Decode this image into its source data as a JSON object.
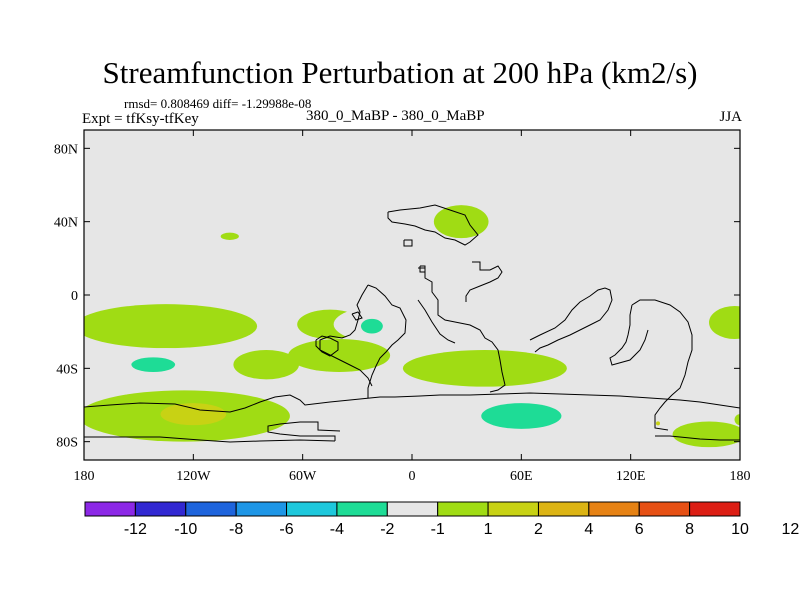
{
  "chart_data": {
    "type": "heatmap",
    "title": "Streamfunction Perturbation at 200 hPa (km2/s)",
    "subtitle_stats": "rmsd= 0.808469  diff= -1.29988e-08",
    "left_label": "Expt = tfKsy-tfKey",
    "center_label": "380_0_MaBP - 380_0_MaBP",
    "right_label": "JJA",
    "x_axis": {
      "min": -180,
      "max": 180,
      "ticks": [
        "180",
        "120W",
        "60W",
        "0",
        "60E",
        "120E",
        "180"
      ]
    },
    "y_axis": {
      "min": -90,
      "max": 90,
      "ticks": [
        "80N",
        "40N",
        "0",
        "40S",
        "80S"
      ]
    },
    "colorbar": {
      "colors": [
        "#8c28e6",
        "#3228d2",
        "#1e64dc",
        "#1e96e6",
        "#1ec8dc",
        "#1edc96",
        "#e6e6e6",
        "#a0dc14",
        "#c8d214",
        "#dcb414",
        "#e68214",
        "#e65014",
        "#dc1e14"
      ],
      "labels": [
        "-12",
        "-10",
        "-8",
        "-6",
        "-4",
        "-2",
        "-1",
        "1",
        "2",
        "4",
        "6",
        "8",
        "10",
        "12"
      ]
    },
    "regions": [
      {
        "lon": -143,
        "lat": 48,
        "rlon": 13,
        "rlat": 5,
        "level": "-1"
      },
      {
        "lon": -100,
        "lat": 32,
        "rlon": 5,
        "rlat": 2,
        "level": "1"
      },
      {
        "lon": 27,
        "lat": 40,
        "rlon": 15,
        "rlat": 9,
        "level": "1"
      },
      {
        "lon": 133,
        "lat": 70,
        "rlon": 7,
        "rlat": 2,
        "level": "-1"
      },
      {
        "lon": 147,
        "lat": 35,
        "rlon": 20,
        "rlat": 8,
        "level": "-1"
      },
      {
        "lon": 115,
        "lat": -15,
        "rlon": 10,
        "rlat": 5,
        "level": "-1"
      },
      {
        "lon": 177,
        "lat": -15,
        "rlon": 14,
        "rlat": 9,
        "level": "1"
      },
      {
        "lon": -135,
        "lat": -17,
        "rlon": 50,
        "rlat": 12,
        "level": "1"
      },
      {
        "lon": -45,
        "lat": -16,
        "rlon": 18,
        "rlat": 8,
        "level": "1"
      },
      {
        "lon": -10,
        "lat": -16,
        "rlon": 33,
        "rlat": 11,
        "level": "-1"
      },
      {
        "lon": -22,
        "lat": -17,
        "rlon": 6,
        "rlat": 4,
        "level": "-2"
      },
      {
        "lon": -40,
        "lat": -33,
        "rlon": 28,
        "rlat": 9,
        "level": "1"
      },
      {
        "lon": -135,
        "lat": -40,
        "rlon": 52,
        "rlat": 11,
        "level": "-1"
      },
      {
        "lon": -142,
        "lat": -38,
        "rlon": 12,
        "rlat": 4,
        "level": "-2"
      },
      {
        "lon": -80,
        "lat": -38,
        "rlon": 18,
        "rlat": 8,
        "level": "1"
      },
      {
        "lon": 40,
        "lat": -40,
        "rlon": 45,
        "rlat": 10,
        "level": "1"
      },
      {
        "lon": -125,
        "lat": -66,
        "rlon": 58,
        "rlat": 14,
        "level": "1"
      },
      {
        "lon": -120,
        "lat": -65,
        "rlon": 18,
        "rlat": 6,
        "level": "2"
      },
      {
        "lon": 35,
        "lat": -70,
        "rlon": 63,
        "rlat": 15,
        "level": "-1"
      },
      {
        "lon": 60,
        "lat": -66,
        "rlon": 22,
        "rlat": 7,
        "level": "-2"
      },
      {
        "lon": 163,
        "lat": -76,
        "rlon": 20,
        "rlat": 7,
        "level": "1"
      },
      {
        "lon": 135,
        "lat": -70,
        "rlon": 1,
        "rlat": 1,
        "level": "2"
      },
      {
        "lon": 180,
        "lat": -68,
        "rlon": 3,
        "rlat": 3,
        "level": "1"
      }
    ]
  }
}
